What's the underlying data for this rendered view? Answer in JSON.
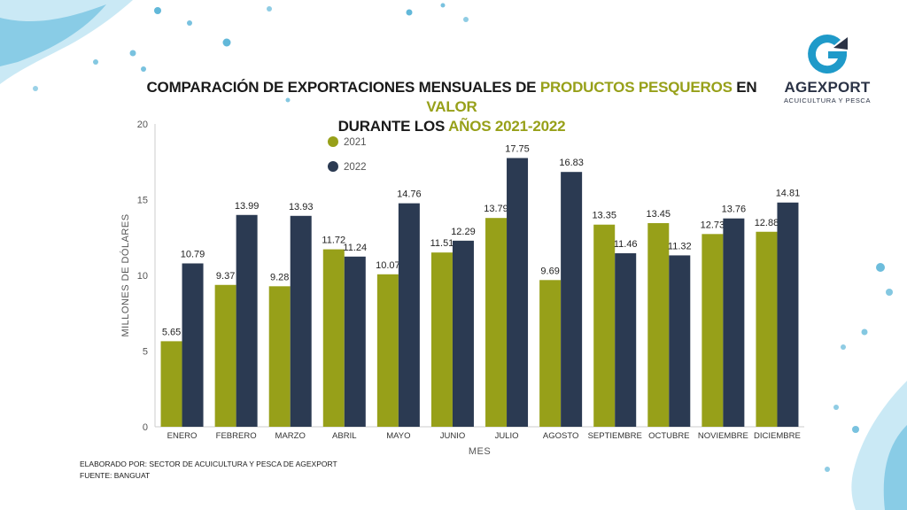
{
  "title": {
    "seg1": "COMPARACIÓN DE EXPORTACIONES MENSUALES DE ",
    "seg2": "PRODUCTOS PESQUEROS",
    "seg3": " EN ",
    "seg4": "VALOR",
    "seg5": "DURANTE LOS ",
    "seg6": "AÑOS 2021-2022"
  },
  "logo": {
    "name": "AGEXPORT",
    "subtitle": "ACUICULTURA Y PESCA",
    "icon": "agexport-g-logo-icon"
  },
  "footer": {
    "line1": "ELABORADO POR: SECTOR DE ACUICULTURA Y PESCA DE AGEXPORT",
    "line2": "FUENTE:  BANGUAT"
  },
  "colors": {
    "series2021": "#97a019",
    "series2022": "#2b3a52",
    "accent": "#97a019",
    "water": "#1f9ac9"
  },
  "chart_data": {
    "type": "bar",
    "xlabel": "MES",
    "ylabel": "MILLONES DE DÓLARES",
    "ylim": [
      0,
      20
    ],
    "yticks": [
      0,
      5,
      10,
      15,
      20
    ],
    "grid": false,
    "legend": "top-left",
    "categories": [
      "ENERO",
      "FEBRERO",
      "MARZO",
      "ABRIL",
      "MAYO",
      "JUNIO",
      "JULIO",
      "AGOSTO",
      "SEPTIEMBRE",
      "OCTUBRE",
      "NOVIEMBRE",
      "DICIEMBRE"
    ],
    "series": [
      {
        "name": "2021",
        "color": "#97a019",
        "values": [
          5.65,
          9.37,
          9.28,
          11.72,
          10.07,
          11.51,
          13.79,
          9.69,
          13.35,
          13.45,
          12.73,
          12.88
        ]
      },
      {
        "name": "2022",
        "color": "#2b3a52",
        "values": [
          10.79,
          13.99,
          13.93,
          11.24,
          14.76,
          12.29,
          17.75,
          16.83,
          11.46,
          11.32,
          13.76,
          14.81
        ]
      }
    ]
  }
}
